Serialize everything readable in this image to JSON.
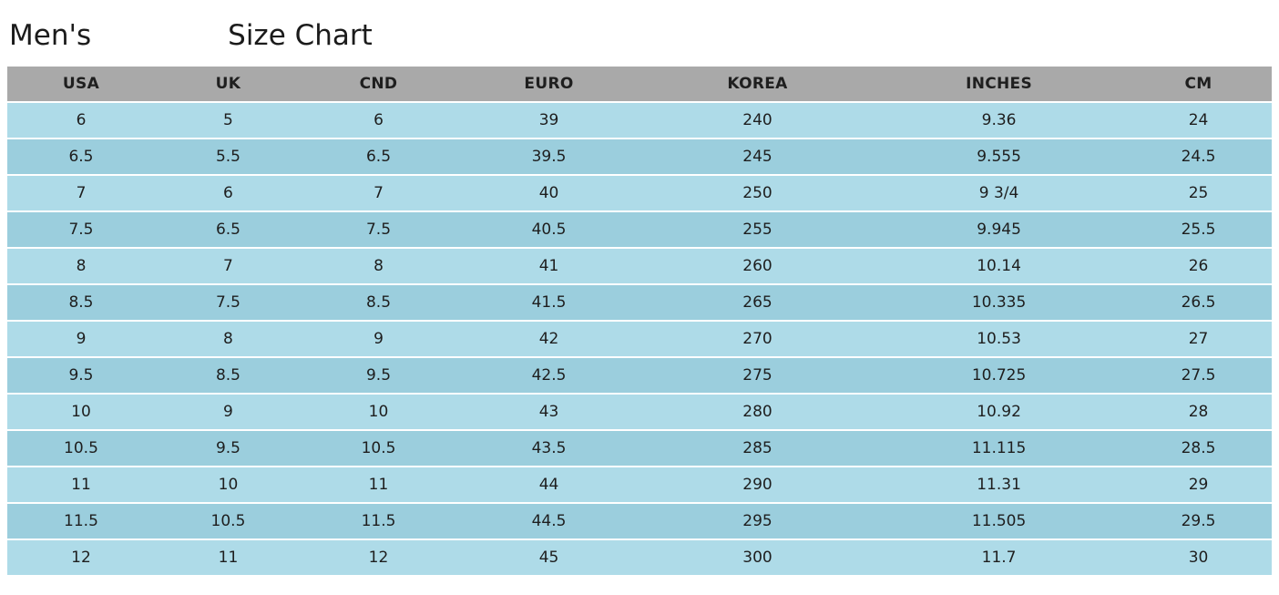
{
  "title": {
    "prefix": "Men's",
    "suffix": "Size Chart"
  },
  "colors": {
    "header_bg": "#a9a9a9",
    "row_light": "#aedbe8",
    "row_dark": "#9bcedd",
    "text": "#1e1e1e"
  },
  "chart_data": {
    "type": "table",
    "title": "Men's Size Chart",
    "columns": [
      "USA",
      "UK",
      "CND",
      "EURO",
      "KOREA",
      "INCHES",
      "CM"
    ],
    "rows": [
      [
        "6",
        "5",
        "6",
        "39",
        "240",
        "9.36",
        "24"
      ],
      [
        "6.5",
        "5.5",
        "6.5",
        "39.5",
        "245",
        "9.555",
        "24.5"
      ],
      [
        "7",
        "6",
        "7",
        "40",
        "250",
        "9 3/4",
        "25"
      ],
      [
        "7.5",
        "6.5",
        "7.5",
        "40.5",
        "255",
        "9.945",
        "25.5"
      ],
      [
        "8",
        "7",
        "8",
        "41",
        "260",
        "10.14",
        "26"
      ],
      [
        "8.5",
        "7.5",
        "8.5",
        "41.5",
        "265",
        "10.335",
        "26.5"
      ],
      [
        "9",
        "8",
        "9",
        "42",
        "270",
        "10.53",
        "27"
      ],
      [
        "9.5",
        "8.5",
        "9.5",
        "42.5",
        "275",
        "10.725",
        "27.5"
      ],
      [
        "10",
        "9",
        "10",
        "43",
        "280",
        "10.92",
        "28"
      ],
      [
        "10.5",
        "9.5",
        "10.5",
        "43.5",
        "285",
        "11.115",
        "28.5"
      ],
      [
        "11",
        "10",
        "11",
        "44",
        "290",
        "11.31",
        "29"
      ],
      [
        "11.5",
        "10.5",
        "11.5",
        "44.5",
        "295",
        "11.505",
        "29.5"
      ],
      [
        "12",
        "11",
        "12",
        "45",
        "300",
        "11.7",
        "30"
      ]
    ]
  }
}
